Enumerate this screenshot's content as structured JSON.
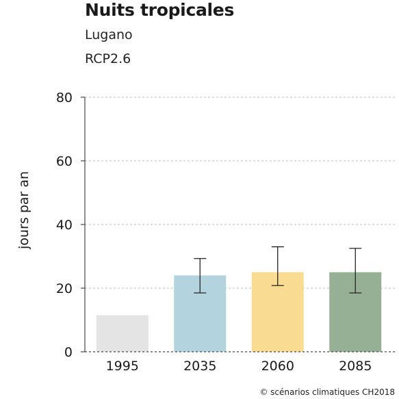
{
  "chart_data": {
    "type": "bar",
    "title": "Nuits tropicales",
    "subtitle_lines": [
      "Lugano",
      "RCP2.6"
    ],
    "xlabel": "",
    "ylabel": "jours par an",
    "ylim": [
      0,
      80
    ],
    "yticks": [
      0,
      20,
      40,
      60,
      80
    ],
    "grid": true,
    "categories": [
      "1995",
      "2035",
      "2060",
      "2085"
    ],
    "values": [
      11.5,
      24,
      25,
      25
    ],
    "error_low": [
      null,
      18.5,
      20.8,
      18.5
    ],
    "error_high": [
      null,
      29.3,
      33,
      32.5
    ],
    "colors": [
      "#e4e4e4",
      "#b3d4de",
      "#f9dc92",
      "#96b096"
    ]
  },
  "credit": "© scénarios climatiques CH2018"
}
